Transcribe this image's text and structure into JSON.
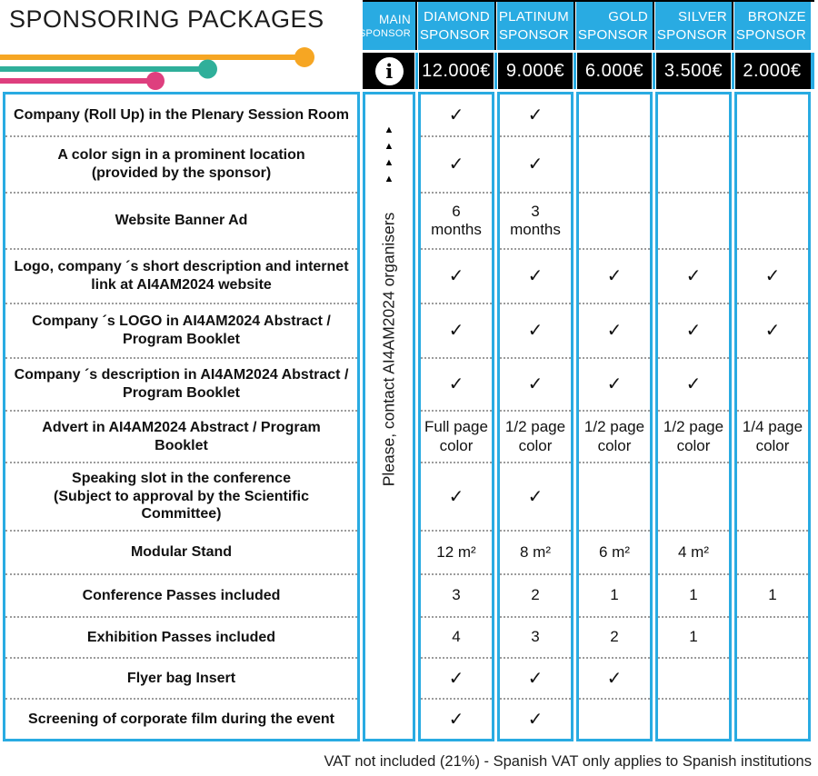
{
  "title": "SPONSORING PACKAGES",
  "footer_note": "VAT not included (21%) - Spanish VAT only applies to Spanish institutions",
  "colors": {
    "accent_cyan": "#29ABE2",
    "price_bg_black": "#000000",
    "deco_orange": "#F6A623",
    "deco_teal": "#2FAF9A",
    "deco_pink": "#DE3F7E"
  },
  "main_column": {
    "header_line1": "MAIN",
    "header_line2": "SPONSOR",
    "info_icon_glyph": "i",
    "triangles": [
      "▲",
      "▲",
      "▲",
      "▲"
    ],
    "vertical_note": "Please, contact AI4AM2024 organisers"
  },
  "sponsor_columns": [
    {
      "name_line1": "DIAMOND",
      "name_line2": "SPONSOR",
      "price": "12.000€"
    },
    {
      "name_line1": "PLATINUM",
      "name_line2": "SPONSOR",
      "price": "9.000€"
    },
    {
      "name_line1": "GOLD",
      "name_line2": "SPONSOR",
      "price": "6.000€"
    },
    {
      "name_line1": "SILVER",
      "name_line2": "SPONSOR",
      "price": "3.500€"
    },
    {
      "name_line1": "BRONZE",
      "name_line2": "SPONSOR",
      "price": "2.000€"
    }
  ],
  "check_glyph": "✓",
  "rows": [
    {
      "label": "Company (Roll Up) in the Plenary Session Room",
      "cells": [
        "check",
        "check",
        "",
        "",
        ""
      ]
    },
    {
      "label": "A color sign in a prominent location\n(provided by the sponsor)",
      "cells": [
        "check",
        "check",
        "",
        "",
        ""
      ]
    },
    {
      "label": "Website Banner Ad",
      "cells": [
        "6\nmonths",
        "3\nmonths",
        "",
        "",
        ""
      ]
    },
    {
      "label": "Logo, company ´s short description and internet\nlink at AI4AM2024 website",
      "cells": [
        "check",
        "check",
        "check",
        "check",
        "check"
      ]
    },
    {
      "label": "Company ´s LOGO in AI4AM2024 Abstract /\nProgram Booklet",
      "cells": [
        "check",
        "check",
        "check",
        "check",
        "check"
      ]
    },
    {
      "label": "Company ´s description in AI4AM2024 Abstract /\nProgram Booklet",
      "cells": [
        "check",
        "check",
        "check",
        "check",
        ""
      ]
    },
    {
      "label": "Advert in AI4AM2024 Abstract / Program\nBooklet",
      "cells": [
        "Full page\ncolor",
        "1/2 page\ncolor",
        "1/2 page\ncolor",
        "1/2 page\ncolor",
        "1/4 page\ncolor"
      ]
    },
    {
      "label": "Speaking slot in the conference\n(Subject to approval by the Scientific\nCommittee)",
      "cells": [
        "check",
        "check",
        "",
        "",
        ""
      ]
    },
    {
      "label": "Modular Stand",
      "cells": [
        "12 m²",
        "8 m²",
        "6 m²",
        "4 m²",
        ""
      ]
    },
    {
      "label": "Conference Passes included",
      "cells": [
        "3",
        "2",
        "1",
        "1",
        "1"
      ]
    },
    {
      "label": "Exhibition Passes included",
      "cells": [
        "4",
        "3",
        "2",
        "1",
        ""
      ]
    },
    {
      "label": "Flyer bag Insert",
      "cells": [
        "check",
        "check",
        "check",
        "",
        ""
      ]
    },
    {
      "label": "Screening of corporate film during the event",
      "cells": [
        "check",
        "check",
        "",
        "",
        ""
      ]
    }
  ]
}
